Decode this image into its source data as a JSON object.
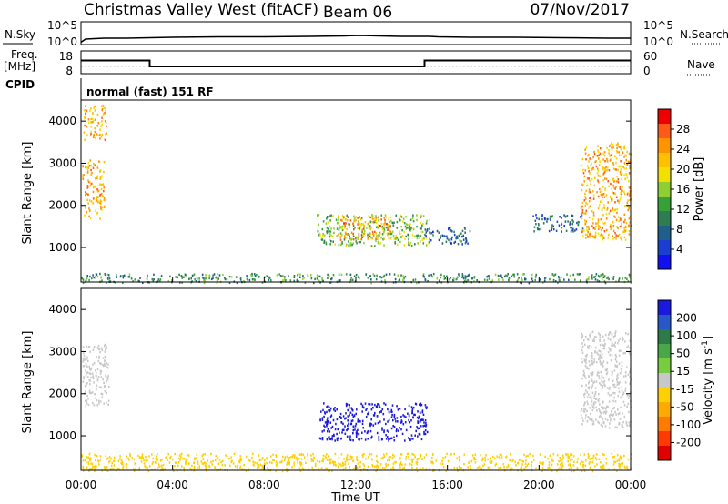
{
  "header": {
    "station": "Christmas Valley West (fitACF)",
    "beam": "Beam 06",
    "date": "07/Nov/2017"
  },
  "noise_panel": {
    "left_label": "N.Sky",
    "left_ticks": [
      "10^5",
      "10^0"
    ],
    "right_ticks": [
      "10^5",
      "10^0"
    ],
    "right_label": "N.Search"
  },
  "freq_panel": {
    "left_label": "Freq.",
    "left_unit": "[MHz]",
    "left_ticks": [
      "18",
      "8"
    ],
    "right_ticks": [
      "60",
      "0"
    ],
    "right_label": "Nave",
    "cpid_label": "CPID",
    "cpid_text": "normal (fast) 151 RF"
  },
  "axes": {
    "x_ticks": [
      "00:00",
      "04:00",
      "08:00",
      "12:00",
      "16:00",
      "20:00",
      "00:00"
    ],
    "xlabel": "Time UT",
    "ylabel": "Slant Range [km]",
    "y_ticks": [
      "1000",
      "2000",
      "3000",
      "4000"
    ]
  },
  "power_colorbar": {
    "title": "Power [dB]",
    "ticks": [
      "28",
      "24",
      "20",
      "16",
      "12",
      "8",
      "4"
    ],
    "colors": [
      "#ee0000",
      "#ff5a1a",
      "#ff9400",
      "#ffc000",
      "#f2e000",
      "#8fcf32",
      "#38a038",
      "#2e7d52",
      "#205f8a",
      "#1a3fd0",
      "#1010f0"
    ]
  },
  "velocity_colorbar": {
    "title": "Velocity [m s",
    "title_sup": "-1",
    "title_end": "]",
    "ticks": [
      "200",
      "100",
      "50",
      "15",
      "-15",
      "-50",
      "-100",
      "-200"
    ],
    "colors": [
      "#1a1adf",
      "#2858c8",
      "#2e7b4a",
      "#48a848",
      "#78cc40",
      "#c8c8c8",
      "#ffd000",
      "#ffaa00",
      "#ff7a00",
      "#ff3a00",
      "#e00000"
    ]
  },
  "chart_data": {
    "type": "heatmap",
    "x_range_hours": [
      0,
      24
    ],
    "y_range_km": [
      180,
      4500
    ],
    "noise_sky_log": {
      "x": [
        0,
        0.2,
        1,
        2,
        3,
        4,
        6,
        8,
        10,
        11.5,
        12.2,
        13,
        14,
        15.2,
        15.6,
        17,
        19,
        21,
        23,
        24
      ],
      "y": [
        0.5,
        1.2,
        1.4,
        1.4,
        1.5,
        1.6,
        1.7,
        1.7,
        1.8,
        1.9,
        2.0,
        1.9,
        1.8,
        1.8,
        1.7,
        1.6,
        1.6,
        1.5,
        1.4,
        1.4
      ]
    },
    "frequency_mhz": {
      "x": [
        0,
        3.0,
        3.0,
        15.0,
        15.0,
        24
      ],
      "y": [
        13.8,
        13.8,
        11.2,
        11.2,
        13.8,
        13.8
      ]
    },
    "nave": {
      "value": 20
    },
    "power_regions": [
      {
        "t": [
          0.05,
          1.0
        ],
        "r": [
          1700,
          3100
        ],
        "level_db": 22
      },
      {
        "t": [
          0.1,
          1.1
        ],
        "r": [
          3550,
          4400
        ],
        "level_db": 22
      },
      {
        "t": [
          10.3,
          15.2
        ],
        "r": [
          1050,
          1800
        ],
        "level_db": 14
      },
      {
        "t": [
          11.2,
          13.5
        ],
        "r": [
          1200,
          1750
        ],
        "level_db": 24
      },
      {
        "t": [
          15.0,
          17.0
        ],
        "r": [
          1100,
          1500
        ],
        "level_db": 6
      },
      {
        "t": [
          19.7,
          22.0
        ],
        "r": [
          1400,
          1800
        ],
        "level_db": 6
      },
      {
        "t": [
          21.8,
          24.0
        ],
        "r": [
          1200,
          3500
        ],
        "level_db": 22
      },
      {
        "t": [
          0,
          24
        ],
        "r": [
          180,
          400
        ],
        "level_db": 10
      }
    ],
    "velocity_regions": [
      {
        "t": [
          0.05,
          1.2
        ],
        "r": [
          1700,
          3200
        ],
        "velocity_ms": 0
      },
      {
        "t": [
          10.4,
          15.1
        ],
        "r": [
          900,
          1800
        ],
        "velocity_ms": 250
      },
      {
        "t": [
          21.8,
          24.0
        ],
        "r": [
          1200,
          3500
        ],
        "velocity_ms": 0
      },
      {
        "t": [
          0,
          24
        ],
        "r": [
          180,
          600
        ],
        "velocity_ms": -60
      }
    ]
  }
}
